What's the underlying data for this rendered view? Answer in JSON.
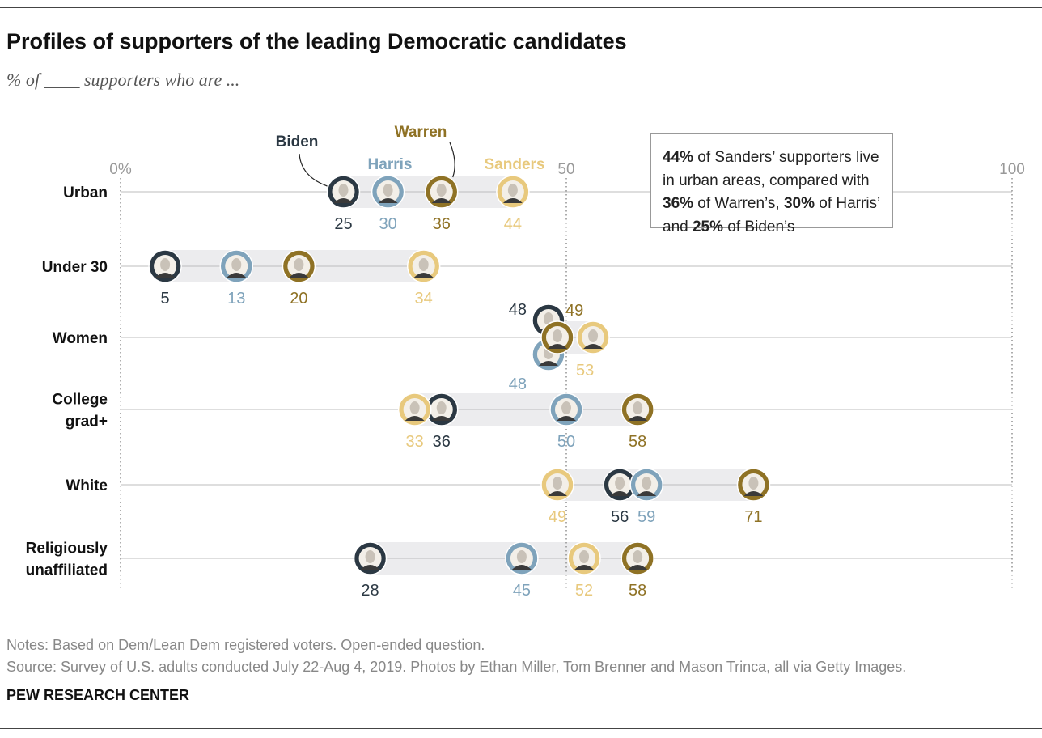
{
  "title": "Profiles of supporters of the leading Democratic candidates",
  "subtitle": "% of ____ supporters who are ...",
  "callout": {
    "part1_bold": "44%",
    "part2": " of Sanders’ supporters live in urban areas, compared with ",
    "part3_bold": "36%",
    "part4": " of Warren’s, ",
    "part5_bold": "30%",
    "part6": " of Harris’ and ",
    "part7_bold": "25%",
    "part8": " of Biden’s"
  },
  "notes": {
    "line1": "Notes: Based on Dem/Lean Dem registered voters. Open-ended question.",
    "line2": "Source: Survey of U.S. adults conducted July 22-Aug 4, 2019. Photos by Ethan Miller, Tom Brenner and Mason Trinca, all via Getty Images."
  },
  "brand": "PEW RESEARCH CENTER",
  "colors": {
    "Biden": "#2b3843",
    "Harris": "#7fa3bb",
    "Warren": "#8f7225",
    "Sanders": "#e8c97d",
    "band": "#ececee",
    "axis": "#999999"
  },
  "chart_data": {
    "type": "dot",
    "xlim": [
      0,
      100
    ],
    "ticks": [
      {
        "value": 0,
        "label": "0%"
      },
      {
        "value": 50,
        "label": "50"
      },
      {
        "value": 100,
        "label": "100"
      }
    ],
    "candidates": [
      "Biden",
      "Harris",
      "Warren",
      "Sanders"
    ],
    "categories": [
      {
        "label": [
          "Urban"
        ],
        "values": {
          "Biden": 25,
          "Harris": 30,
          "Warren": 36,
          "Sanders": 44
        }
      },
      {
        "label": [
          "Under 30"
        ],
        "values": {
          "Biden": 5,
          "Harris": 13,
          "Warren": 20,
          "Sanders": 34
        }
      },
      {
        "label": [
          "Women"
        ],
        "values": {
          "Biden": 48,
          "Harris": 48,
          "Warren": 49,
          "Sanders": 53
        }
      },
      {
        "label": [
          "College",
          "grad+"
        ],
        "values": {
          "Biden": 36,
          "Harris": 50,
          "Warren": 58,
          "Sanders": 33
        }
      },
      {
        "label": [
          "White"
        ],
        "values": {
          "Biden": 56,
          "Harris": 59,
          "Warren": 71,
          "Sanders": 49
        }
      },
      {
        "label": [
          "Religiously",
          "unaffiliated"
        ],
        "values": {
          "Biden": 28,
          "Harris": 45,
          "Warren": 58,
          "Sanders": 52
        }
      }
    ]
  }
}
